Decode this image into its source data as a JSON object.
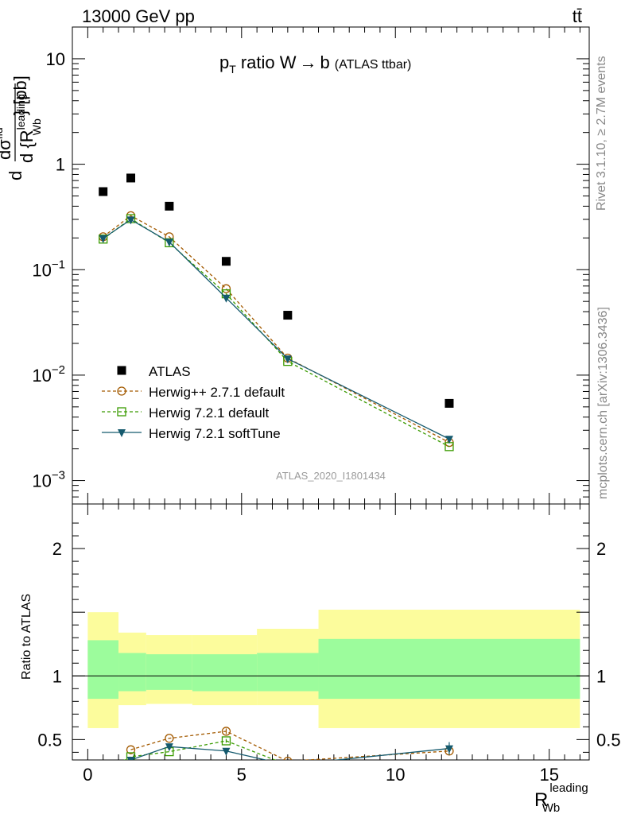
{
  "header": {
    "process_left": "13000 GeV pp",
    "process_right": "tt̄"
  },
  "main_title": {
    "p": "p",
    "sub_t": "T",
    "ratio_text": "ratio W",
    "arrow": "→",
    "b": "b",
    "paren": "(ATLAS ttbar)"
  },
  "side_labels": {
    "rivet": "Rivet 3.1.10, ≥ 2.7M events",
    "mcplots": "mcplots.cern.ch [arXiv:1306.3436]"
  },
  "analysis_id": "ATLAS_2020_I1801434",
  "ylabel_main": {
    "d1": "d",
    "dsigma": "dσ",
    "fid": "fid",
    "d2": "d {R",
    "leading": "leading",
    "wb": "Wb",
    "close": "} [pb]"
  },
  "xlabel": {
    "R": "R",
    "leading": "leading",
    "wb": "Wb"
  },
  "ratio_ylabel": "Ratio to ATLAS",
  "colors": {
    "atlas": "#000000",
    "herwigpp": "#a35a00",
    "herwig721": "#3a9b00",
    "softtune": "#155a6e",
    "band_inner": "#9cfc9c",
    "band_outer": "#fcfc9c"
  },
  "chart_data": [
    {
      "type": "scatter",
      "xlim": [
        -0.5,
        16.3
      ],
      "ylim": [
        0.0006,
        20
      ],
      "yscale": "log",
      "x_ticks": [
        0,
        5,
        10,
        15
      ],
      "y_ticks": [
        {
          "value": 0.001,
          "mant": "10",
          "exp": "−3"
        },
        {
          "value": 0.01,
          "mant": "10",
          "exp": "−2"
        },
        {
          "value": 0.1,
          "mant": "10",
          "exp": "−1"
        },
        {
          "value": 1,
          "mant": "1",
          "exp": ""
        },
        {
          "value": 10,
          "mant": "10",
          "exp": ""
        }
      ],
      "legend_position": "lower-left",
      "series": [
        {
          "name": "ATLAS",
          "marker": "filled-square",
          "line": "none",
          "x": [
            0.5,
            1.4,
            2.65,
            4.5,
            6.5,
            11.75
          ],
          "y": [
            0.55,
            0.74,
            0.4,
            0.12,
            0.037,
            0.0054
          ]
        },
        {
          "name": "Herwig++ 2.7.1 default",
          "marker": "open-circle",
          "line": "dashed",
          "x": [
            0.5,
            1.4,
            2.65,
            4.5,
            6.5,
            11.75
          ],
          "y": [
            0.205,
            0.325,
            0.205,
            0.066,
            0.0145,
            0.0023
          ]
        },
        {
          "name": "Herwig 7.2.1 default",
          "marker": "open-square",
          "line": "dashed",
          "x": [
            0.5,
            1.4,
            2.65,
            4.5,
            6.5,
            11.75
          ],
          "y": [
            0.195,
            0.305,
            0.18,
            0.059,
            0.0135,
            0.0021
          ]
        },
        {
          "name": "Herwig 7.2.1 softTune",
          "marker": "filled-triangle-down",
          "line": "solid",
          "x": [
            0.5,
            1.4,
            2.65,
            4.5,
            6.5,
            11.75
          ],
          "y": [
            0.198,
            0.298,
            0.183,
            0.054,
            0.0143,
            0.00248
          ]
        }
      ]
    },
    {
      "type": "line",
      "xlim": [
        -0.5,
        16.3
      ],
      "ylim": [
        0.34,
        2.35
      ],
      "y_ticks": [
        0.5,
        1,
        2
      ],
      "y_tick_labels": [
        "0.5",
        "1",
        "2"
      ],
      "reference_line": 1,
      "bands": [
        {
          "x0": 0,
          "x1": 1.0,
          "outer": [
            0.59,
            1.5
          ],
          "inner": [
            0.82,
            1.28
          ]
        },
        {
          "x0": 1.0,
          "x1": 1.9,
          "outer": [
            0.77,
            1.34
          ],
          "inner": [
            0.88,
            1.18
          ]
        },
        {
          "x0": 1.9,
          "x1": 3.4,
          "outer": [
            0.78,
            1.32
          ],
          "inner": [
            0.89,
            1.17
          ]
        },
        {
          "x0": 3.4,
          "x1": 5.5,
          "outer": [
            0.77,
            1.32
          ],
          "inner": [
            0.88,
            1.17
          ]
        },
        {
          "x0": 5.5,
          "x1": 7.5,
          "outer": [
            0.77,
            1.37
          ],
          "inner": [
            0.88,
            1.18
          ]
        },
        {
          "x0": 7.5,
          "x1": 16.0,
          "outer": [
            0.59,
            1.52
          ],
          "inner": [
            0.82,
            1.29
          ]
        }
      ],
      "series": [
        {
          "name": "Herwig++ 2.7.1 default",
          "x": [
            1.4,
            2.65,
            4.5,
            6.5,
            11.75
          ],
          "y": [
            0.42,
            0.51,
            0.565,
            0.33,
            0.41
          ],
          "yerr": [
            0,
            0,
            0.022,
            0,
            0.035
          ]
        },
        {
          "name": "Herwig 7.2.1 default",
          "x": [
            0.5,
            1.4,
            2.65,
            4.5,
            6.5
          ],
          "y": [
            0.25,
            0.365,
            0.405,
            0.49,
            0.3
          ],
          "yerr": [
            0,
            0,
            0,
            0.015,
            0
          ]
        },
        {
          "name": "Herwig 7.2.1 softTune",
          "x": [
            1.4,
            2.65,
            4.5,
            6.5,
            11.75
          ],
          "y": [
            0.34,
            0.445,
            0.41,
            0.3,
            0.43
          ],
          "yerr": [
            0,
            0,
            0.02,
            0,
            0.05
          ]
        }
      ]
    }
  ]
}
